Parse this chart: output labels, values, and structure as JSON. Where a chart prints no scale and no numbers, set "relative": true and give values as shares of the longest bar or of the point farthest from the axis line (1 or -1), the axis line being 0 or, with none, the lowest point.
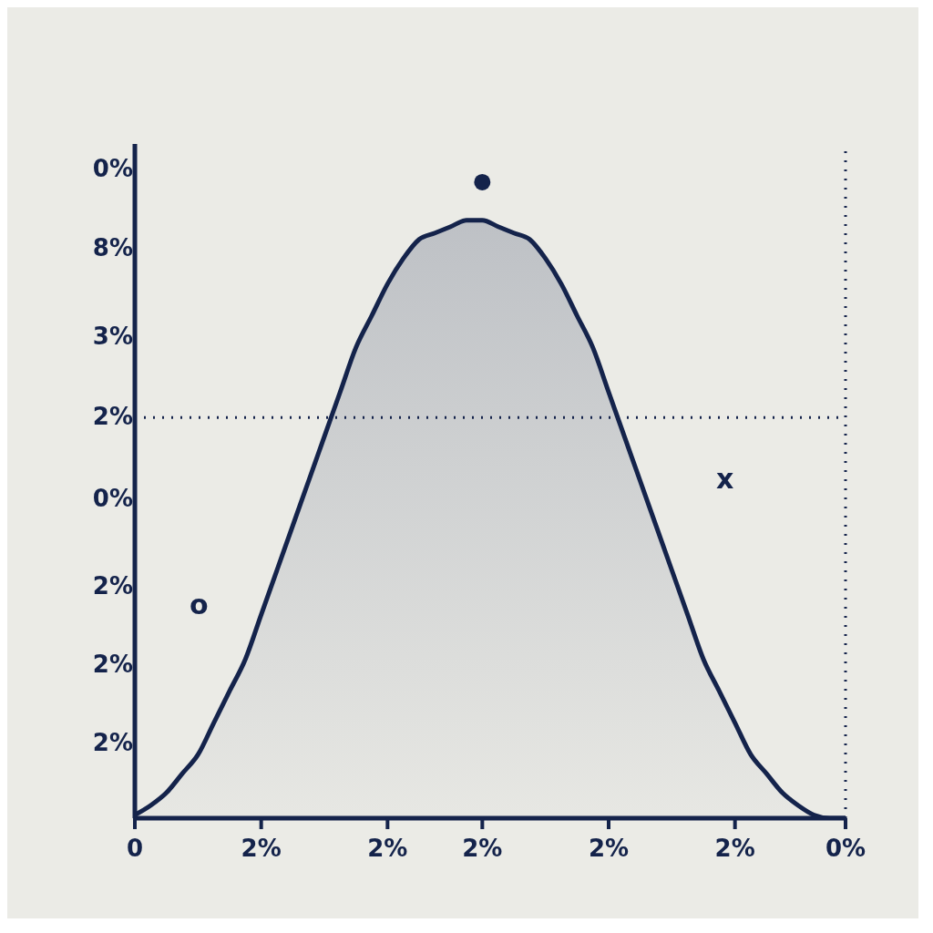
{
  "chart_data": {
    "type": "area",
    "relative": true,
    "categories": [
      "0",
      null,
      null,
      null,
      null,
      null,
      null,
      null,
      "2%",
      null,
      null,
      null,
      null,
      null,
      null,
      null,
      "2%",
      null,
      null,
      null,
      null,
      null,
      "2%",
      null,
      null,
      null,
      null,
      null,
      null,
      null,
      "2%",
      null,
      null,
      null,
      null,
      null,
      null,
      null,
      "2%",
      null,
      null,
      null,
      null,
      null,
      null,
      "0%"
    ],
    "series": [
      {
        "color": "#14234b",
        "values": [
          0.005,
          0.02,
          0.04,
          0.07,
          0.1,
          0.15,
          0.2,
          0.25,
          0.32,
          0.39,
          0.46,
          0.53,
          0.6,
          0.67,
          0.74,
          0.79,
          0.84,
          0.88,
          0.91,
          0.92,
          0.93,
          0.94,
          0.94,
          0.93,
          0.92,
          0.91,
          0.88,
          0.84,
          0.79,
          0.74,
          0.67,
          0.6,
          0.53,
          0.46,
          0.39,
          0.32,
          0.25,
          0.2,
          0.15,
          0.1,
          0.07,
          0.04,
          0.02,
          0.005,
          0,
          0
        ]
      },
      {
        "type": "scatter",
        "color": "#14234b",
        "values": [
          null,
          null,
          null,
          null,
          null,
          null,
          null,
          null,
          null,
          null,
          null,
          null,
          null,
          null,
          null,
          null,
          null,
          null,
          null,
          null,
          null,
          null,
          1,
          null,
          null,
          null,
          null,
          null,
          null,
          null,
          null,
          null,
          null,
          null,
          null,
          null,
          null,
          null,
          null,
          null,
          null,
          null,
          null,
          null,
          null,
          null
        ]
      }
    ],
    "ref_lines": [
      {
        "axis": "y",
        "value": 0.63,
        "color": "#14234b",
        "line_style": "dotted"
      },
      {
        "axis": "x",
        "value": "0%",
        "color": "#14234b",
        "line_style": "dotted"
      }
    ],
    "annotations": [
      "0%",
      "8%",
      "3%",
      "2%",
      "0%",
      "2%",
      "2%",
      "2%",
      "o",
      "x"
    ],
    "grid": false,
    "legend": false
  }
}
